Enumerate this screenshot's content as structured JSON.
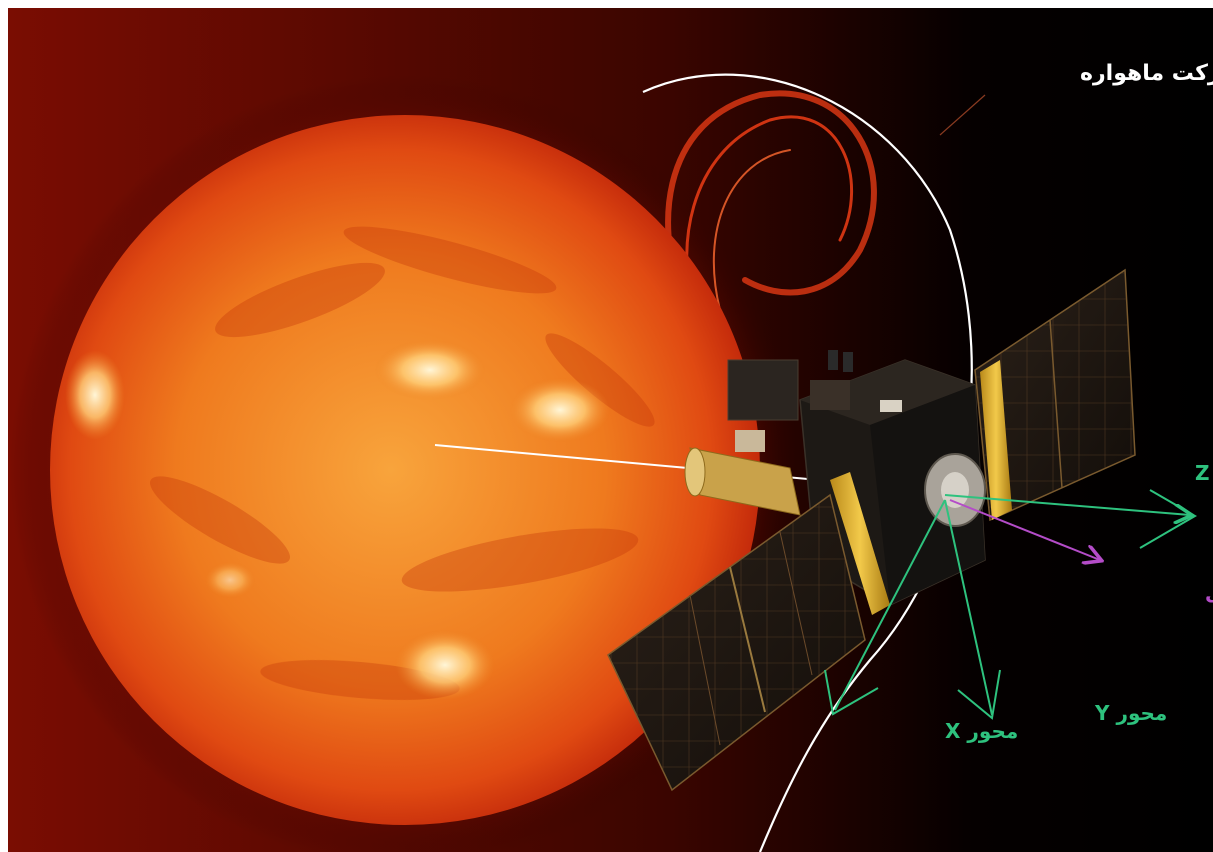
{
  "labels": {
    "orbit_path": "مسیر حرکت ماهواره",
    "z_axis": "محور Z",
    "body_z_axis": "محور Z دستگاه بدنی",
    "x_axis": "محور X",
    "y_axis": "محور Y"
  },
  "colors": {
    "axis_green": "#2ec27e",
    "body_axis_purple": "#b44cc8",
    "orbit_white": "#ffffff",
    "sun_core": "#f7a23a",
    "sun_edge": "#c9260c",
    "space": "#000000"
  }
}
